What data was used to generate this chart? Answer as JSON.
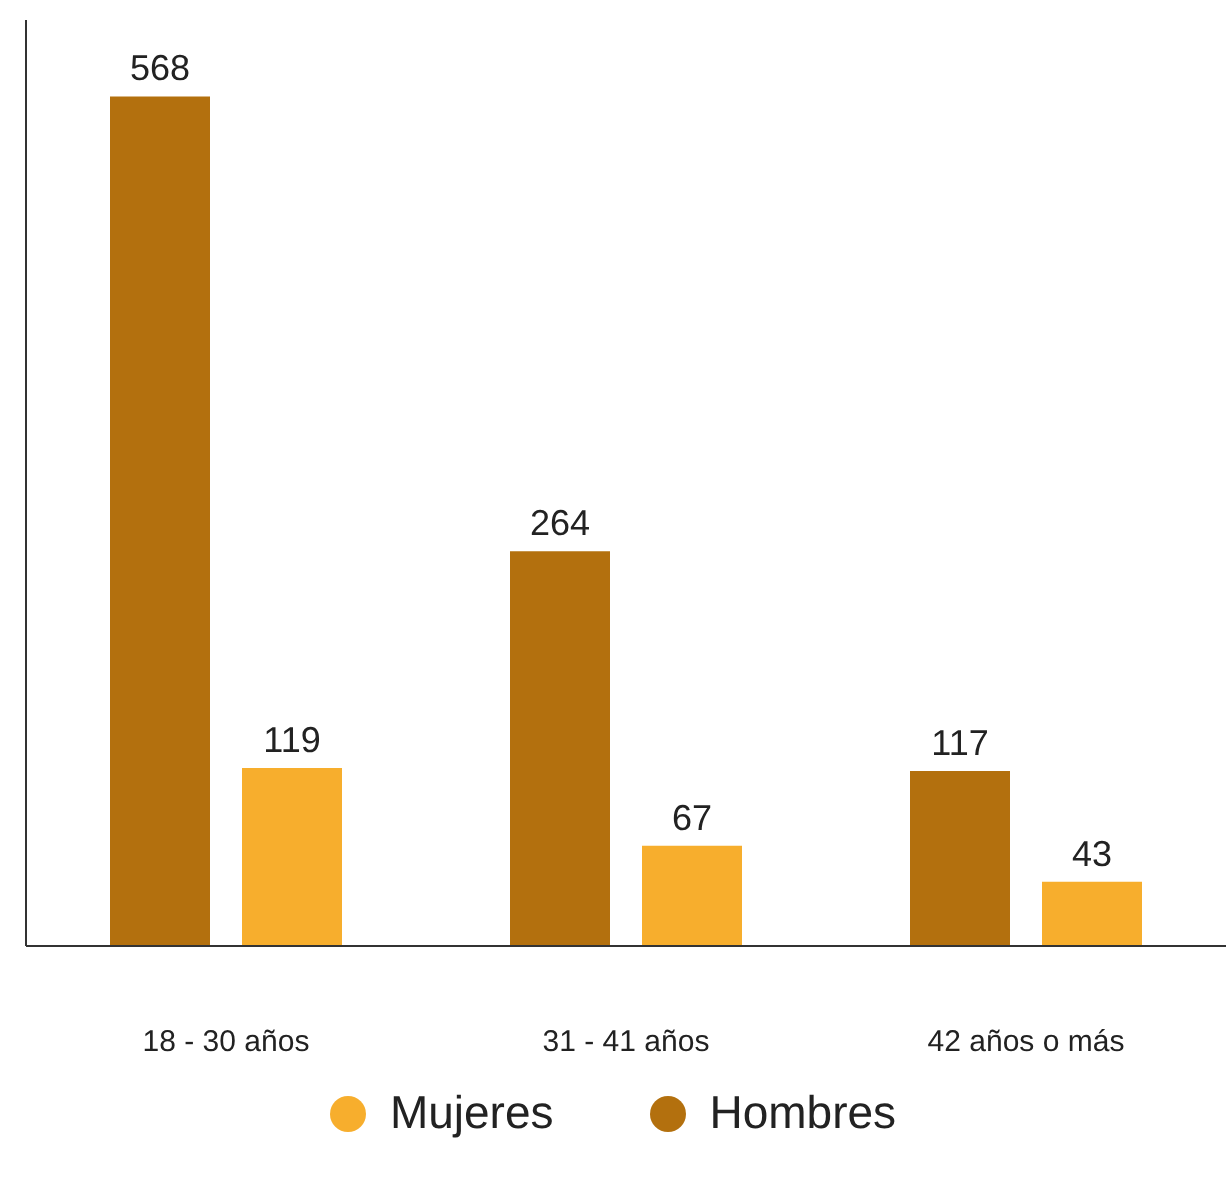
{
  "chart_data": {
    "type": "bar",
    "categories": [
      "18 - 30 años",
      "31 - 41 años",
      "42 años o más"
    ],
    "series": [
      {
        "name": "Hombres",
        "color": "#b3700e",
        "values": [
          568,
          264,
          117
        ]
      },
      {
        "name": "Mujeres",
        "color": "#f7ae2d",
        "values": [
          119,
          67,
          43
        ]
      }
    ],
    "data_labels": true,
    "legend": "bottom",
    "grid": false,
    "tick_labels": "x"
  }
}
